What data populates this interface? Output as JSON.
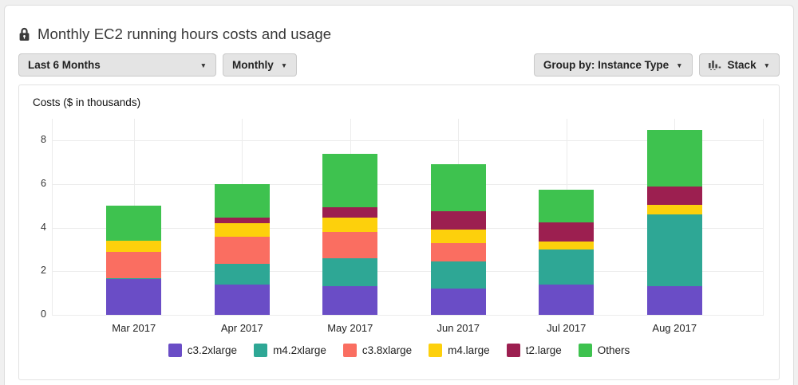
{
  "header": {
    "title": "Monthly EC2 running hours costs and usage"
  },
  "controls": {
    "time_range": "Last 6 Months",
    "granularity": "Monthly",
    "group_by": "Group by: Instance Type",
    "chart_style": "Stack"
  },
  "chart_data": {
    "type": "bar",
    "stacked": true,
    "title": "Costs ($ in thousands)",
    "ylabel": "Costs ($ in thousands)",
    "xlabel": "",
    "categories": [
      "Mar 2017",
      "Apr 2017",
      "May 2017",
      "Jun 2017",
      "Jul 2017",
      "Aug 2017"
    ],
    "series": [
      {
        "name": "c3.2xlarge",
        "color": "#6a4dc6",
        "values": [
          1.65,
          1.4,
          1.3,
          1.2,
          1.4,
          1.3
        ]
      },
      {
        "name": "m4.2xlarge",
        "color": "#2ea795",
        "values": [
          0.05,
          0.95,
          1.3,
          1.25,
          1.6,
          3.3
        ]
      },
      {
        "name": "c3.8xlarge",
        "color": "#fa6e61",
        "values": [
          1.2,
          1.25,
          1.2,
          0.85,
          0,
          0
        ]
      },
      {
        "name": "m4.large",
        "color": "#fdd00c",
        "values": [
          0.5,
          0.6,
          0.65,
          0.6,
          0.35,
          0.45
        ]
      },
      {
        "name": "t2.large",
        "color": "#9c1f50",
        "values": [
          0,
          0.25,
          0.5,
          0.85,
          0.9,
          0.85
        ]
      },
      {
        "name": "Others",
        "color": "#3ec24f",
        "values": [
          1.6,
          1.55,
          2.45,
          2.15,
          1.5,
          2.6
        ]
      }
    ],
    "totals": [
      5.0,
      6.0,
      7.4,
      6.9,
      5.75,
      8.5
    ],
    "yticks": [
      0,
      2,
      4,
      6,
      8
    ],
    "ylim": [
      0,
      9
    ],
    "grid": true,
    "legend_position": "bottom"
  }
}
